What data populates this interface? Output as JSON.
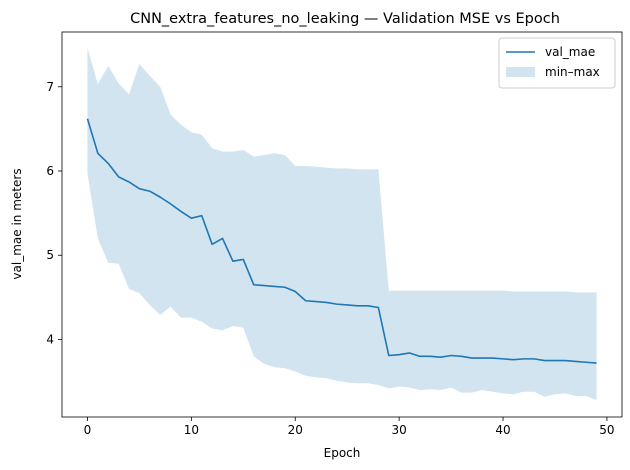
{
  "chart_data": {
    "type": "line",
    "title": "CNN_extra_features_no_leaking — Validation MSE vs Epoch",
    "xlabel": "Epoch",
    "ylabel": "val_mae in meters",
    "xlim": [
      -2.45,
      51.45
    ],
    "ylim": [
      3.08,
      7.65
    ],
    "xticks": [
      0,
      10,
      20,
      30,
      40,
      50
    ],
    "yticks": [
      4,
      5,
      6,
      7
    ],
    "grid": false,
    "legend_position": "top-right",
    "colors": {
      "line": "#1f77b4",
      "band": "#1f77b4"
    },
    "series": [
      {
        "name": "val_mae",
        "kind": "line",
        "x": [
          0,
          1,
          2,
          3,
          4,
          5,
          6,
          7,
          8,
          9,
          10,
          11,
          12,
          13,
          14,
          15,
          16,
          17,
          18,
          19,
          20,
          21,
          22,
          23,
          24,
          25,
          26,
          27,
          28,
          29,
          30,
          31,
          32,
          33,
          34,
          35,
          36,
          37,
          38,
          39,
          40,
          41,
          42,
          43,
          44,
          45,
          46,
          47,
          48,
          49
        ],
        "y": [
          6.62,
          6.21,
          6.09,
          5.93,
          5.87,
          5.79,
          5.76,
          5.69,
          5.61,
          5.52,
          5.44,
          5.47,
          5.13,
          5.2,
          4.93,
          4.95,
          4.65,
          4.64,
          4.63,
          4.62,
          4.57,
          4.46,
          4.45,
          4.44,
          4.42,
          4.41,
          4.4,
          4.4,
          4.38,
          3.81,
          3.82,
          3.84,
          3.8,
          3.8,
          3.79,
          3.81,
          3.8,
          3.78,
          3.78,
          3.78,
          3.77,
          3.76,
          3.77,
          3.77,
          3.75,
          3.75,
          3.75,
          3.74,
          3.73,
          3.72
        ]
      },
      {
        "name": "min–max",
        "kind": "band",
        "x": [
          0,
          1,
          2,
          3,
          4,
          5,
          6,
          7,
          8,
          9,
          10,
          11,
          12,
          13,
          14,
          15,
          16,
          17,
          18,
          19,
          20,
          21,
          22,
          23,
          24,
          25,
          26,
          27,
          28,
          29,
          30,
          31,
          32,
          33,
          34,
          35,
          36,
          37,
          38,
          39,
          40,
          41,
          42,
          43,
          44,
          45,
          46,
          47,
          48,
          49
        ],
        "min": [
          5.97,
          5.2,
          4.91,
          4.9,
          4.6,
          4.55,
          4.41,
          4.29,
          4.39,
          4.26,
          4.26,
          4.21,
          4.13,
          4.11,
          4.16,
          4.14,
          3.8,
          3.71,
          3.67,
          3.66,
          3.62,
          3.57,
          3.55,
          3.54,
          3.51,
          3.49,
          3.48,
          3.48,
          3.46,
          3.42,
          3.44,
          3.43,
          3.4,
          3.41,
          3.4,
          3.43,
          3.37,
          3.37,
          3.4,
          3.38,
          3.36,
          3.35,
          3.38,
          3.38,
          3.32,
          3.35,
          3.36,
          3.33,
          3.33,
          3.28
        ],
        "max": [
          7.46,
          7.03,
          7.25,
          7.04,
          6.91,
          7.27,
          7.13,
          7.0,
          6.67,
          6.55,
          6.46,
          6.43,
          6.27,
          6.23,
          6.23,
          6.25,
          6.17,
          6.19,
          6.21,
          6.19,
          6.06,
          6.06,
          6.05,
          6.04,
          6.03,
          6.03,
          6.02,
          6.02,
          6.02,
          4.58,
          4.58,
          4.58,
          4.58,
          4.58,
          4.58,
          4.58,
          4.58,
          4.58,
          4.58,
          4.58,
          4.58,
          4.57,
          4.57,
          4.57,
          4.57,
          4.57,
          4.57,
          4.56,
          4.56,
          4.56
        ]
      }
    ]
  }
}
